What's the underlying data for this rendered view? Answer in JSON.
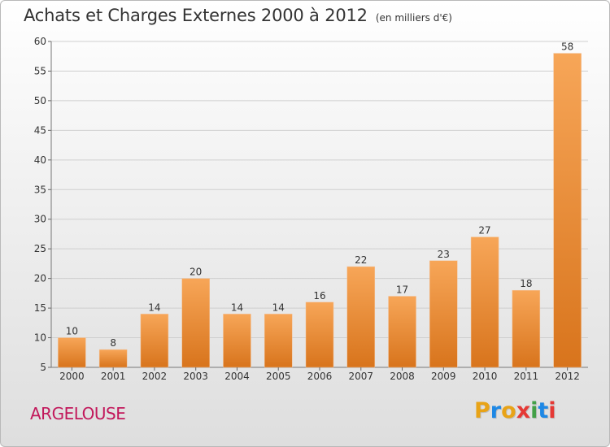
{
  "header": {
    "title": "Achats et Charges Externes 2000 à 2012",
    "subtitle": "(en milliers d'€)"
  },
  "footer": {
    "commune": "ARGELOUSE",
    "logo_letters": [
      "P",
      "r",
      "o",
      "x",
      "i",
      "t",
      "i"
    ],
    "logo_colors": [
      "#e8a317",
      "#1e88e5",
      "#e8a317",
      "#e53935",
      "#43a047",
      "#1e88e5",
      "#e53935"
    ]
  },
  "colors": {
    "bar_light": "#f7a658",
    "bar_dark": "#d8741c",
    "grid": "#cfcfcf"
  },
  "chart_data": {
    "type": "bar",
    "title": "Achats et Charges Externes 2000 à 2012",
    "subtitle": "(en milliers d'€)",
    "categories": [
      "2000",
      "2001",
      "2002",
      "2003",
      "2004",
      "2005",
      "2006",
      "2007",
      "2008",
      "2009",
      "2010",
      "2011",
      "2012"
    ],
    "values": [
      10,
      8,
      14,
      20,
      14,
      14,
      16,
      22,
      17,
      23,
      27,
      18,
      58
    ],
    "ylim": [
      5,
      60
    ],
    "yticks": [
      5,
      10,
      15,
      20,
      25,
      30,
      35,
      40,
      45,
      50,
      55,
      60
    ],
    "grid": true,
    "xlabel": "",
    "ylabel": ""
  }
}
